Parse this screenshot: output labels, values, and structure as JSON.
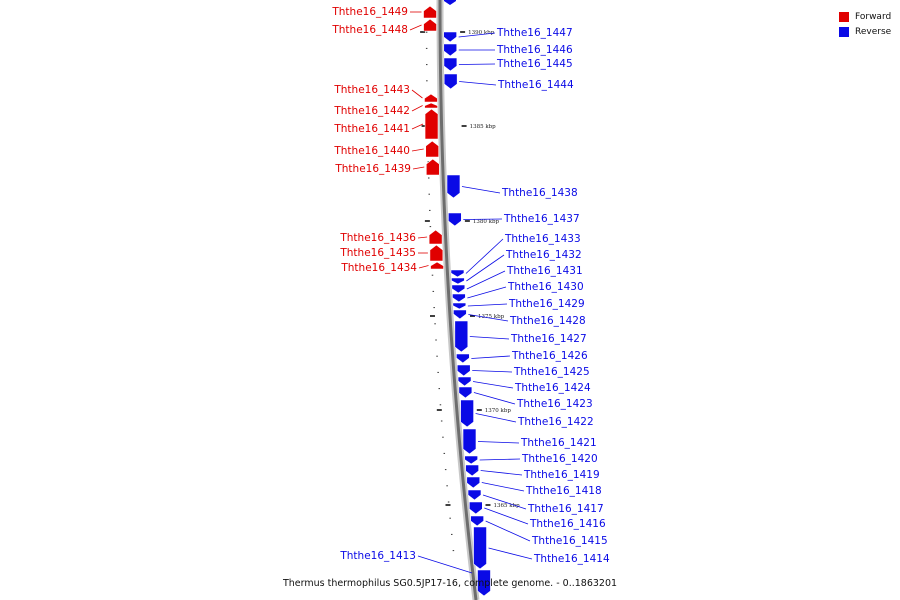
{
  "colors": {
    "forward": "#e00000",
    "reverse": "#0a0ae6",
    "backbone": "#6d6d6d"
  },
  "legend": [
    {
      "key": "forward",
      "label": "Forward",
      "color": "#e00000"
    },
    {
      "key": "reverse",
      "label": "Reverse",
      "color": "#0a0ae6"
    }
  ],
  "caption": "Thermus thermophilus SG0.5JP17-16, complete genome. - 0..1863201",
  "ticks": [
    {
      "label": "1390 kbp"
    },
    {
      "label": "1385 kbp"
    },
    {
      "label": "1380 kbp"
    },
    {
      "label": "1375 kbp"
    },
    {
      "label": "1370 kbp"
    },
    {
      "label": "1365 kbp"
    }
  ],
  "genes": [
    {
      "name": "Ththe16_1449",
      "strand": "forward"
    },
    {
      "name": "Ththe16_1448",
      "strand": "forward"
    },
    {
      "name": "Ththe16_1447",
      "strand": "reverse"
    },
    {
      "name": "Ththe16_1446",
      "strand": "reverse"
    },
    {
      "name": "Ththe16_1445",
      "strand": "reverse"
    },
    {
      "name": "Ththe16_1444",
      "strand": "reverse"
    },
    {
      "name": "Ththe16_1443",
      "strand": "forward"
    },
    {
      "name": "Ththe16_1442",
      "strand": "forward"
    },
    {
      "name": "Ththe16_1441",
      "strand": "forward"
    },
    {
      "name": "Ththe16_1440",
      "strand": "forward"
    },
    {
      "name": "Ththe16_1439",
      "strand": "forward"
    },
    {
      "name": "Ththe16_1438",
      "strand": "reverse"
    },
    {
      "name": "Ththe16_1437",
      "strand": "reverse"
    },
    {
      "name": "Ththe16_1436",
      "strand": "forward"
    },
    {
      "name": "Ththe16_1435",
      "strand": "forward"
    },
    {
      "name": "Ththe16_1434",
      "strand": "forward"
    },
    {
      "name": "Ththe16_1433",
      "strand": "reverse"
    },
    {
      "name": "Ththe16_1432",
      "strand": "reverse"
    },
    {
      "name": "Ththe16_1431",
      "strand": "reverse"
    },
    {
      "name": "Ththe16_1430",
      "strand": "reverse"
    },
    {
      "name": "Ththe16_1429",
      "strand": "reverse"
    },
    {
      "name": "Ththe16_1428",
      "strand": "reverse"
    },
    {
      "name": "Ththe16_1427",
      "strand": "reverse"
    },
    {
      "name": "Ththe16_1426",
      "strand": "reverse"
    },
    {
      "name": "Ththe16_1425",
      "strand": "reverse"
    },
    {
      "name": "Ththe16_1424",
      "strand": "reverse"
    },
    {
      "name": "Ththe16_1423",
      "strand": "reverse"
    },
    {
      "name": "Ththe16_1422",
      "strand": "reverse"
    },
    {
      "name": "Ththe16_1421",
      "strand": "reverse"
    },
    {
      "name": "Ththe16_1420",
      "strand": "reverse"
    },
    {
      "name": "Ththe16_1419",
      "strand": "reverse"
    },
    {
      "name": "Ththe16_1418",
      "strand": "reverse"
    },
    {
      "name": "Ththe16_1417",
      "strand": "reverse"
    },
    {
      "name": "Ththe16_1416",
      "strand": "reverse"
    },
    {
      "name": "Ththe16_1415",
      "strand": "reverse"
    },
    {
      "name": "Ththe16_1414",
      "strand": "reverse"
    },
    {
      "name": "Ththe16_1413",
      "strand": "reverse"
    }
  ]
}
